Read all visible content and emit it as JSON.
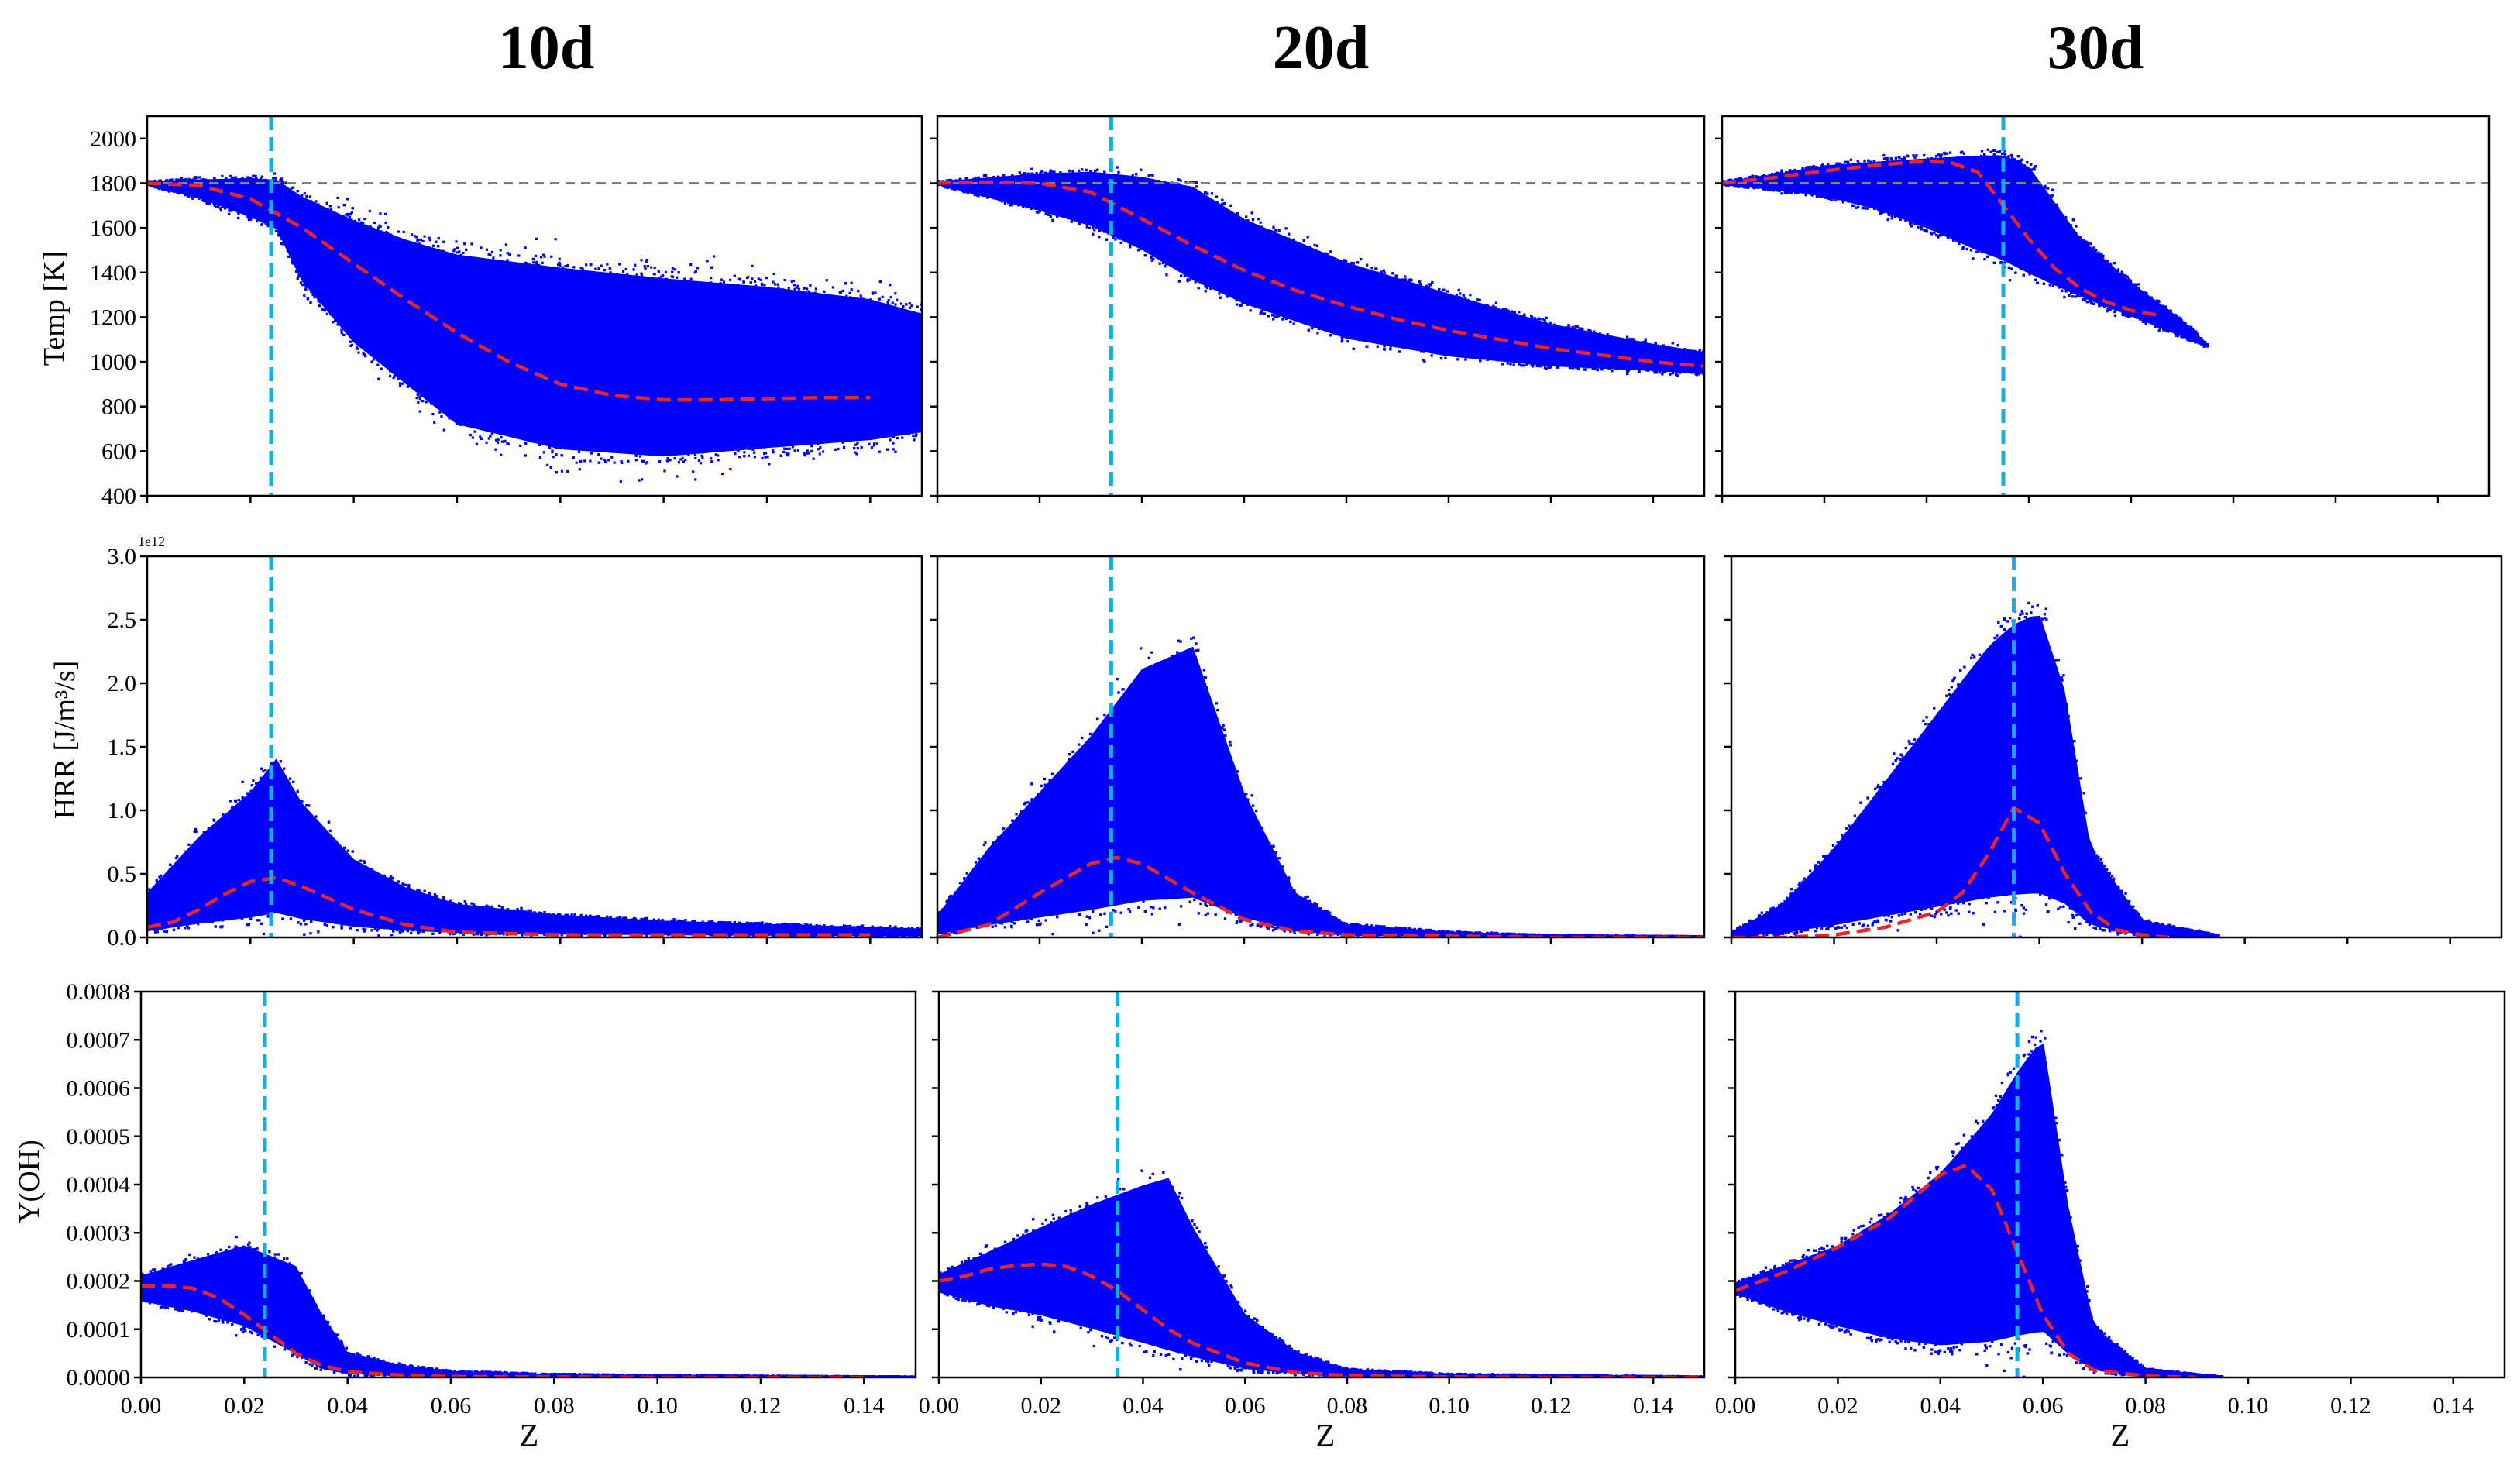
{
  "figure": {
    "column_titles": [
      "10d",
      "20d",
      "30d"
    ],
    "row_ylabels": [
      "Temp [K]",
      "HRR [J/m³/s]",
      "Y(OH)"
    ],
    "xlabel": "Z",
    "hrr_offset_text": "1e12"
  },
  "colors": {
    "scatter": "#0000ff",
    "conditional_mean": "#e8262a",
    "stoich_line": "#13aee3",
    "reference_line": "#808080",
    "axes": "#000000"
  },
  "chart_data": [
    {
      "type": "scatter",
      "panel": "10d-temp",
      "title": "10d",
      "xlabel": "",
      "ylabel": "Temp [K]",
      "xlim": [
        0,
        0.15
      ],
      "ylim": [
        400,
        2100
      ],
      "xticks": [
        0.0,
        0.02,
        0.04,
        0.06,
        0.08,
        0.1,
        0.12,
        0.14
      ],
      "yticks": [
        400,
        600,
        800,
        1000,
        1200,
        1400,
        1600,
        1800,
        2000
      ],
      "show_xticklabels": false,
      "stoich_z": 0.024,
      "reference_y": 1800,
      "series": [
        {
          "name": "",
          "style": "red-dashed",
          "x": [
            0.0,
            0.01,
            0.02,
            0.03,
            0.04,
            0.05,
            0.06,
            0.07,
            0.08,
            0.09,
            0.1,
            0.11,
            0.12,
            0.13,
            0.14
          ],
          "y": [
            1800,
            1790,
            1730,
            1600,
            1440,
            1280,
            1130,
            1000,
            900,
            850,
            830,
            830,
            835,
            840,
            840
          ]
        }
      ],
      "scatter_envelope": {
        "x": [
          0.0,
          0.01,
          0.02,
          0.025,
          0.03,
          0.04,
          0.05,
          0.06,
          0.08,
          0.1,
          0.12,
          0.14,
          0.15
        ],
        "ymin": [
          1790,
          1720,
          1620,
          1560,
          1300,
          1000,
          800,
          600,
          480,
          450,
          500,
          550,
          600
        ],
        "ymax": [
          1810,
          1830,
          1850,
          1850,
          1800,
          1720,
          1650,
          1600,
          1550,
          1500,
          1450,
          1380,
          1300
        ],
        "density": 0.85
      }
    },
    {
      "type": "scatter",
      "panel": "20d-temp",
      "title": "20d",
      "xlabel": "",
      "ylabel": "",
      "xlim": [
        0,
        0.15
      ],
      "ylim": [
        400,
        2100
      ],
      "xticks": [
        0.0,
        0.02,
        0.04,
        0.06,
        0.08,
        0.1,
        0.12,
        0.14
      ],
      "yticks": [
        400,
        600,
        800,
        1000,
        1200,
        1400,
        1600,
        1800,
        2000
      ],
      "show_xticklabels": false,
      "show_yticklabels": false,
      "stoich_z": 0.034,
      "reference_y": 1800,
      "series": [
        {
          "name": "",
          "style": "red-dashed",
          "x": [
            0.0,
            0.01,
            0.02,
            0.03,
            0.04,
            0.05,
            0.06,
            0.07,
            0.08,
            0.09,
            0.1,
            0.11,
            0.12,
            0.13,
            0.14,
            0.15
          ],
          "y": [
            1800,
            1805,
            1800,
            1760,
            1640,
            1520,
            1410,
            1320,
            1250,
            1190,
            1140,
            1100,
            1060,
            1030,
            1000,
            980
          ]
        }
      ],
      "scatter_envelope": {
        "x": [
          0.0,
          0.02,
          0.03,
          0.04,
          0.05,
          0.06,
          0.08,
          0.1,
          0.12,
          0.14,
          0.15
        ],
        "ymin": [
          1790,
          1650,
          1570,
          1450,
          1300,
          1200,
          1050,
          980,
          950,
          940,
          930
        ],
        "ymax": [
          1810,
          1870,
          1890,
          1880,
          1850,
          1700,
          1500,
          1350,
          1200,
          1100,
          1060
        ],
        "density": 0.9
      }
    },
    {
      "type": "scatter",
      "panel": "30d-temp",
      "title": "30d",
      "xlabel": "",
      "ylabel": "",
      "xlim": [
        0,
        0.15
      ],
      "ylim": [
        400,
        2100
      ],
      "xticks": [
        0.0,
        0.02,
        0.04,
        0.06,
        0.08,
        0.1,
        0.12,
        0.14
      ],
      "yticks": [
        400,
        600,
        800,
        1000,
        1200,
        1400,
        1600,
        1800,
        2000
      ],
      "show_xticklabels": false,
      "show_yticklabels": false,
      "stoich_z": 0.055,
      "reference_y": 1800,
      "series": [
        {
          "name": "",
          "style": "red-dashed",
          "x": [
            0.0,
            0.01,
            0.02,
            0.03,
            0.04,
            0.045,
            0.05,
            0.055,
            0.06,
            0.065,
            0.07,
            0.075,
            0.08,
            0.085
          ],
          "y": [
            1800,
            1825,
            1855,
            1880,
            1900,
            1890,
            1850,
            1700,
            1550,
            1420,
            1330,
            1270,
            1230,
            1210
          ]
        }
      ],
      "scatter_envelope": {
        "x": [
          0.0,
          0.01,
          0.02,
          0.03,
          0.04,
          0.05,
          0.055,
          0.06,
          0.07,
          0.08,
          0.09,
          0.095
        ],
        "ymin": [
          1790,
          1760,
          1720,
          1650,
          1550,
          1430,
          1380,
          1320,
          1250,
          1180,
          1100,
          1060
        ],
        "ymax": [
          1810,
          1850,
          1900,
          1930,
          1960,
          1990,
          2000,
          1950,
          1600,
          1380,
          1200,
          1080
        ],
        "density": 0.95
      }
    },
    {
      "type": "scatter",
      "panel": "10d-hrr",
      "xlabel": "",
      "ylabel": "HRR [J/m³/s]",
      "xlim": [
        0,
        0.15
      ],
      "ylim": [
        0,
        3.0
      ],
      "y_scale_label": "1e12",
      "xticks": [
        0.0,
        0.02,
        0.04,
        0.06,
        0.08,
        0.1,
        0.12,
        0.14
      ],
      "yticks": [
        0.0,
        0.5,
        1.0,
        1.5,
        2.0,
        2.5,
        3.0
      ],
      "show_xticklabels": false,
      "stoich_z": 0.024,
      "series": [
        {
          "name": "",
          "style": "red-dashed",
          "x": [
            0.0,
            0.005,
            0.01,
            0.015,
            0.02,
            0.025,
            0.03,
            0.04,
            0.05,
            0.06,
            0.08,
            0.1,
            0.12,
            0.14
          ],
          "y": [
            0.08,
            0.12,
            0.22,
            0.34,
            0.44,
            0.47,
            0.4,
            0.22,
            0.1,
            0.04,
            0.02,
            0.02,
            0.02,
            0.02
          ]
        }
      ],
      "scatter_envelope": {
        "x": [
          0.0,
          0.01,
          0.02,
          0.025,
          0.03,
          0.04,
          0.05,
          0.06,
          0.08,
          0.1,
          0.12,
          0.15
        ],
        "ymin": [
          0,
          0,
          0,
          0,
          0,
          0,
          0,
          0,
          0,
          0,
          0,
          0
        ],
        "ymax": [
          0.4,
          0.9,
          1.3,
          1.6,
          1.2,
          0.7,
          0.45,
          0.3,
          0.2,
          0.15,
          0.12,
          0.08
        ],
        "density": 0.9
      }
    },
    {
      "type": "scatter",
      "panel": "20d-hrr",
      "xlabel": "",
      "ylabel": "",
      "xlim": [
        0,
        0.15
      ],
      "ylim": [
        0,
        3.0
      ],
      "xticks": [
        0.0,
        0.02,
        0.04,
        0.06,
        0.08,
        0.1,
        0.12,
        0.14
      ],
      "yticks": [
        0.0,
        0.5,
        1.0,
        1.5,
        2.0,
        2.5,
        3.0
      ],
      "show_xticklabels": false,
      "show_yticklabels": false,
      "stoich_z": 0.034,
      "series": [
        {
          "name": "",
          "style": "red-dashed",
          "x": [
            0.0,
            0.01,
            0.02,
            0.03,
            0.035,
            0.04,
            0.05,
            0.06,
            0.07,
            0.08,
            0.1,
            0.12,
            0.14,
            0.15
          ],
          "y": [
            0.0,
            0.1,
            0.35,
            0.58,
            0.63,
            0.58,
            0.35,
            0.14,
            0.05,
            0.02,
            0.01,
            0.0,
            0.0,
            0.0
          ]
        }
      ],
      "scatter_envelope": {
        "x": [
          0.0,
          0.01,
          0.02,
          0.03,
          0.04,
          0.05,
          0.06,
          0.07,
          0.08,
          0.1,
          0.12,
          0.15
        ],
        "ymin": [
          0,
          0,
          0,
          0,
          0,
          0,
          0,
          0,
          0,
          0,
          0,
          0
        ],
        "ymax": [
          0.2,
          0.8,
          1.3,
          1.8,
          2.4,
          2.6,
          1.3,
          0.4,
          0.12,
          0.05,
          0.02,
          0.01
        ],
        "density": 0.92
      }
    },
    {
      "type": "scatter",
      "panel": "30d-hrr",
      "xlabel": "",
      "ylabel": "",
      "xlim": [
        0,
        0.15
      ],
      "ylim": [
        0,
        3.0
      ],
      "xticks": [
        0.0,
        0.02,
        0.04,
        0.06,
        0.08,
        0.1,
        0.12,
        0.14
      ],
      "yticks": [
        0.0,
        0.5,
        1.0,
        1.5,
        2.0,
        2.5,
        3.0
      ],
      "show_xticklabels": false,
      "show_yticklabels": false,
      "stoich_z": 0.055,
      "series": [
        {
          "name": "",
          "style": "red-dashed",
          "x": [
            0.0,
            0.01,
            0.02,
            0.03,
            0.04,
            0.045,
            0.05,
            0.055,
            0.06,
            0.065,
            0.07,
            0.075,
            0.08,
            0.085
          ],
          "y": [
            0.0,
            0.0,
            0.02,
            0.08,
            0.2,
            0.35,
            0.65,
            1.02,
            0.9,
            0.5,
            0.2,
            0.06,
            0.02,
            0.0
          ]
        }
      ],
      "scatter_envelope": {
        "x": [
          0.0,
          0.01,
          0.02,
          0.03,
          0.04,
          0.05,
          0.055,
          0.06,
          0.065,
          0.07,
          0.08,
          0.095
        ],
        "ymin": [
          0,
          0,
          0,
          0,
          0,
          0,
          0,
          0,
          0,
          0,
          0,
          0
        ],
        "ymax": [
          0.05,
          0.3,
          0.8,
          1.4,
          2.0,
          2.6,
          2.8,
          2.9,
          2.2,
          0.8,
          0.15,
          0.02
        ],
        "density": 0.96
      }
    },
    {
      "type": "scatter",
      "panel": "10d-oh",
      "xlabel": "Z",
      "ylabel": "Y(OH)",
      "xlim": [
        0,
        0.15
      ],
      "ylim": [
        0,
        0.0008
      ],
      "xticks": [
        0.0,
        0.02,
        0.04,
        0.06,
        0.08,
        0.1,
        0.12,
        0.14
      ],
      "xticklabels": [
        "0.00",
        "0.02",
        "0.04",
        "0.06",
        "0.08",
        "0.10",
        "0.12",
        "0.14"
      ],
      "yticks": [
        0.0,
        0.0001,
        0.0002,
        0.0003,
        0.0004,
        0.0005,
        0.0006,
        0.0007,
        0.0008
      ],
      "yticklabels": [
        "0.0000",
        "0.0001",
        "0.0002",
        "0.0003",
        "0.0004",
        "0.0005",
        "0.0006",
        "0.0007",
        "0.0008"
      ],
      "stoich_z": 0.024,
      "series": [
        {
          "name": "",
          "style": "red-dashed",
          "x": [
            0.0,
            0.005,
            0.01,
            0.015,
            0.02,
            0.025,
            0.03,
            0.035,
            0.04,
            0.05,
            0.06,
            0.08,
            0.1,
            0.12,
            0.14
          ],
          "y": [
            0.00019,
            0.00019,
            0.000185,
            0.000165,
            0.00013,
            9e-05,
            5e-05,
            2.5e-05,
            1.2e-05,
            5e-06,
            2e-06,
            1e-06,
            0.0,
            0.0,
            0.0
          ]
        }
      ],
      "scatter_envelope": {
        "x": [
          0.0,
          0.01,
          0.02,
          0.025,
          0.03,
          0.035,
          0.04,
          0.05,
          0.06,
          0.08,
          0.1,
          0.15
        ],
        "ymin": [
          0.00015,
          0.00012,
          8e-05,
          5e-05,
          2e-05,
          0.0,
          0.0,
          0.0,
          0.0,
          0.0,
          0.0,
          0.0
        ],
        "ymax": [
          0.00022,
          0.00026,
          0.0003,
          0.00028,
          0.00026,
          0.00015,
          6e-05,
          3e-05,
          1.5e-05,
          8e-06,
          5e-06,
          2e-06
        ],
        "density": 0.95
      }
    },
    {
      "type": "scatter",
      "panel": "20d-oh",
      "xlabel": "Z",
      "ylabel": "",
      "xlim": [
        0,
        0.15
      ],
      "ylim": [
        0,
        0.0008
      ],
      "xticks": [
        0.0,
        0.02,
        0.04,
        0.06,
        0.08,
        0.1,
        0.12,
        0.14
      ],
      "xticklabels": [
        "0.00",
        "0.02",
        "0.04",
        "0.06",
        "0.08",
        "0.10",
        "0.12",
        "0.14"
      ],
      "yticks": [
        0.0,
        0.0001,
        0.0002,
        0.0003,
        0.0004,
        0.0005,
        0.0006,
        0.0007,
        0.0008
      ],
      "show_yticklabels": false,
      "stoich_z": 0.035,
      "series": [
        {
          "name": "",
          "style": "red-dashed",
          "x": [
            0.0,
            0.005,
            0.01,
            0.015,
            0.02,
            0.025,
            0.03,
            0.035,
            0.04,
            0.045,
            0.05,
            0.06,
            0.07,
            0.08,
            0.1,
            0.12,
            0.15
          ],
          "y": [
            0.0002,
            0.00021,
            0.000225,
            0.000232,
            0.000235,
            0.00023,
            0.00021,
            0.00018,
            0.00014,
            0.0001,
            7e-05,
            3e-05,
            1e-05,
            4e-06,
            1e-06,
            0.0,
            0.0
          ]
        }
      ],
      "scatter_envelope": {
        "x": [
          0.0,
          0.01,
          0.02,
          0.03,
          0.04,
          0.045,
          0.05,
          0.06,
          0.07,
          0.08,
          0.1,
          0.15
        ],
        "ymin": [
          0.00017,
          0.00013,
          0.0001,
          6e-05,
          2e-05,
          0.0,
          0.0,
          0.0,
          0.0,
          0.0,
          0.0,
          0.0
        ],
        "ymax": [
          0.00022,
          0.00028,
          0.00034,
          0.0004,
          0.00045,
          0.00047,
          0.00035,
          0.00015,
          6e-05,
          2e-05,
          8e-06,
          2e-06
        ],
        "density": 0.93
      }
    },
    {
      "type": "scatter",
      "panel": "30d-oh",
      "xlabel": "Z",
      "ylabel": "",
      "xlim": [
        0,
        0.15
      ],
      "ylim": [
        0,
        0.0008
      ],
      "xticks": [
        0.0,
        0.02,
        0.04,
        0.06,
        0.08,
        0.1,
        0.12,
        0.14
      ],
      "xticklabels": [
        "0.00",
        "0.02",
        "0.04",
        "0.06",
        "0.08",
        "0.10",
        "0.12",
        "0.14"
      ],
      "yticks": [
        0.0,
        0.0001,
        0.0002,
        0.0003,
        0.0004,
        0.0005,
        0.0006,
        0.0007,
        0.0008
      ],
      "show_yticklabels": false,
      "stoich_z": 0.055,
      "series": [
        {
          "name": "",
          "style": "red-dashed",
          "x": [
            0.0,
            0.01,
            0.02,
            0.03,
            0.04,
            0.045,
            0.05,
            0.055,
            0.06,
            0.065,
            0.07,
            0.08,
            0.09
          ],
          "y": [
            0.00018,
            0.00022,
            0.00027,
            0.00033,
            0.00042,
            0.00044,
            0.00039,
            0.00026,
            0.00013,
            5e-05,
            1.5e-05,
            3e-06,
            0.0
          ]
        }
      ],
      "scatter_envelope": {
        "x": [
          0.0,
          0.01,
          0.02,
          0.03,
          0.04,
          0.05,
          0.055,
          0.06,
          0.065,
          0.07,
          0.08,
          0.095
        ],
        "ymin": [
          0.00017,
          0.00012,
          8e-05,
          4e-05,
          1e-05,
          0.0,
          0.0,
          0.0,
          0.0,
          0.0,
          0.0,
          0.0
        ],
        "ymax": [
          0.0002,
          0.00025,
          0.0003,
          0.00038,
          0.00048,
          0.00062,
          0.00072,
          0.0008,
          0.0004,
          0.00012,
          2e-05,
          2e-06
        ],
        "density": 0.97
      }
    }
  ]
}
